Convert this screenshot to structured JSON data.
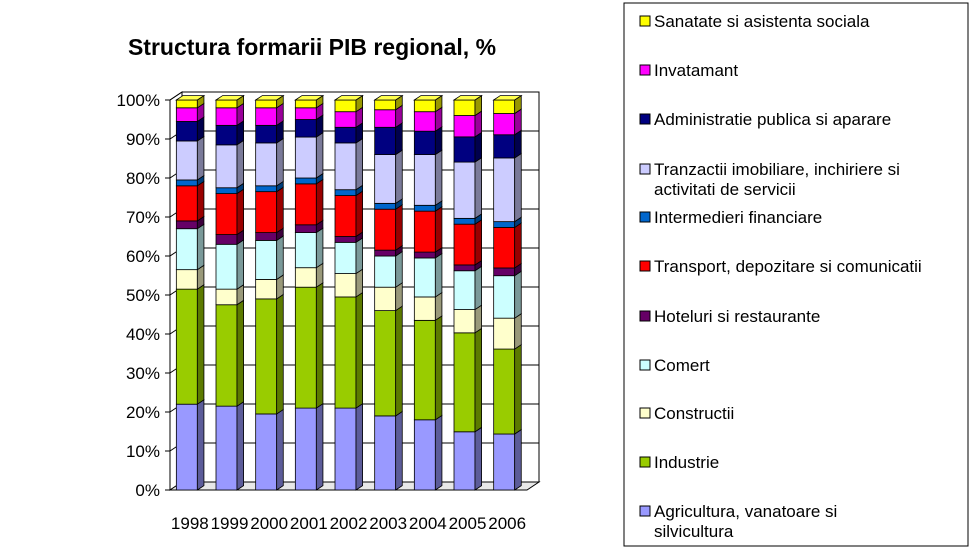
{
  "chart_data": {
    "type": "bar",
    "stacked": true,
    "percent_stacked": true,
    "three_d": true,
    "title": "Structura formarii PIB regional, %",
    "xlabel": "",
    "ylabel": "",
    "ylim": [
      0,
      100
    ],
    "y_ticks": [
      "0%",
      "10%",
      "20%",
      "30%",
      "40%",
      "50%",
      "60%",
      "70%",
      "80%",
      "90%",
      "100%"
    ],
    "categories": [
      "1998",
      "1999",
      "2000",
      "2001",
      "2002",
      "2003",
      "2004",
      "2005",
      "2006"
    ],
    "grid": true,
    "legend_position": "right",
    "series": [
      {
        "name": "Agricultura, vanatoare si silvicultura",
        "color": "#9999ff",
        "values": [
          22,
          21.5,
          19.5,
          21,
          21,
          19,
          18,
          15,
          14.5
        ]
      },
      {
        "name": "Industrie",
        "color": "#99cc00",
        "values": [
          29.5,
          26,
          29.5,
          31,
          28.5,
          27,
          25.5,
          25.5,
          22
        ]
      },
      {
        "name": "Constructii",
        "color": "#ffffcc",
        "values": [
          5,
          4,
          5,
          5,
          6,
          6,
          6,
          6,
          8
        ]
      },
      {
        "name": "Comert",
        "color": "#ccffff",
        "values": [
          10.5,
          11.5,
          10,
          9,
          8,
          8,
          10,
          10,
          11
        ]
      },
      {
        "name": "Hoteluri si restaurante",
        "color": "#660066",
        "values": [
          2,
          2.5,
          2,
          2,
          1.5,
          1.5,
          1.5,
          1.5,
          2
        ]
      },
      {
        "name": "Transport, depozitare si comunicatii",
        "color": "#ff0000",
        "values": [
          9,
          10.5,
          10.5,
          10.5,
          10.5,
          10.5,
          10.5,
          10.5,
          10.5
        ]
      },
      {
        "name": "Intermedieri financiare",
        "color": "#0066cc",
        "values": [
          1.5,
          1.5,
          1.5,
          1.5,
          1.5,
          1.5,
          1.5,
          1.5,
          1.5
        ]
      },
      {
        "name": "Tranzactii imobiliare, inchiriere si activitati de servicii",
        "color": "#ccccff",
        "values": [
          10,
          11,
          11,
          10.5,
          12,
          12.5,
          13,
          14.5,
          16.5
        ]
      },
      {
        "name": "Administratie publica si aparare",
        "color": "#000080",
        "values": [
          5,
          5,
          4.5,
          4.5,
          4,
          7,
          6,
          6.5,
          6
        ]
      },
      {
        "name": "Invatamant",
        "color": "#ff00ff",
        "values": [
          3.5,
          4.5,
          4.5,
          3,
          4,
          4.5,
          5,
          5.5,
          5.5
        ]
      },
      {
        "name": "Sanatate si asistenta sociala",
        "color": "#ffff00",
        "values": [
          2,
          2,
          2,
          2,
          3,
          2.5,
          3,
          4,
          3.5
        ]
      }
    ]
  }
}
